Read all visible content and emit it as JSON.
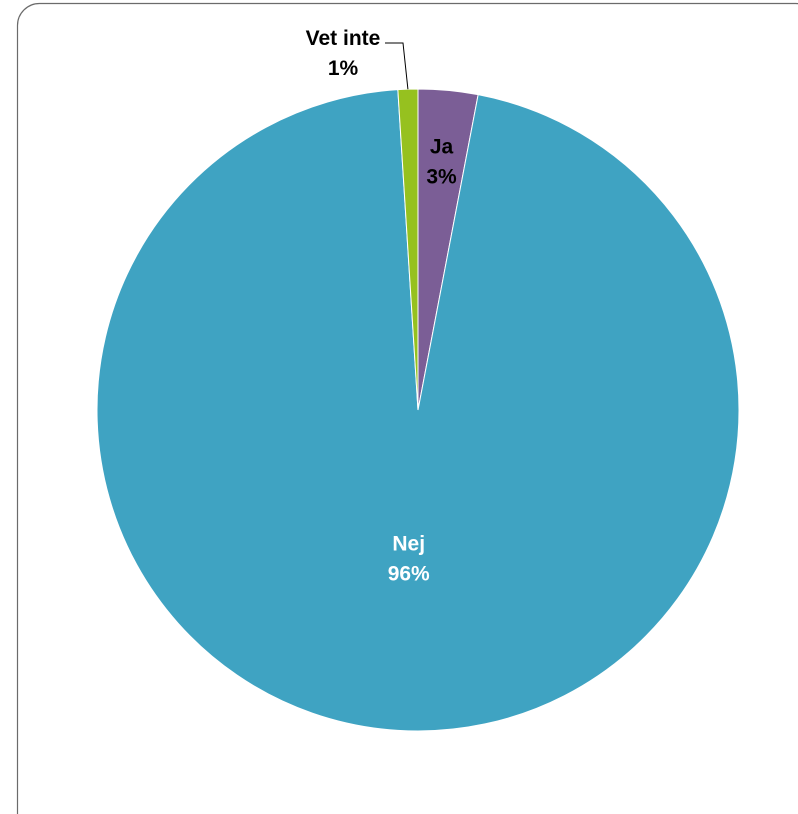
{
  "chart_data": {
    "type": "pie",
    "title": "",
    "slices": [
      {
        "label": "Ja",
        "value": 3,
        "display": "3%",
        "color": "#7B5E96"
      },
      {
        "label": "Nej",
        "value": 96,
        "display": "96%",
        "color": "#3FA3C2"
      },
      {
        "label": "Vet inte",
        "value": 1,
        "display": "1%",
        "color": "#96C11F"
      }
    ],
    "legend": "none",
    "data_labels": "category and percentage"
  }
}
